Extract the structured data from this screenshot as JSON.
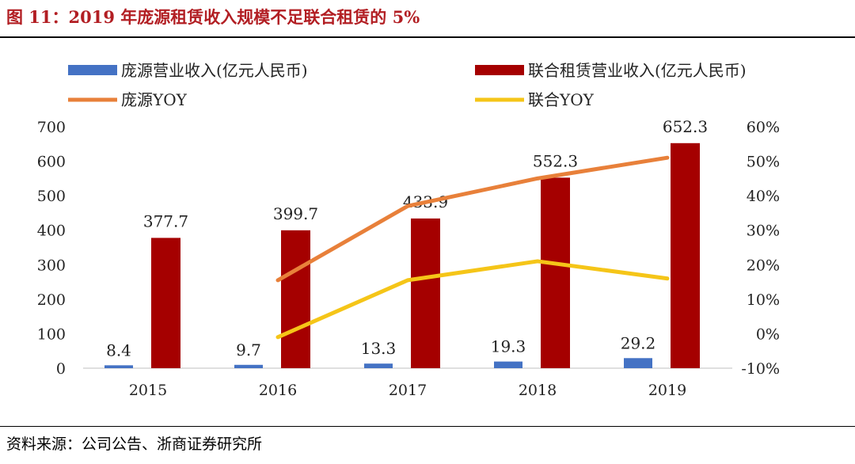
{
  "header": {
    "title": "图 11：2019 年庞源租赁收入规模不足联合租赁的 5%"
  },
  "footer": {
    "source": "资料来源：公司公告、浙商证券研究所"
  },
  "chart_data": {
    "type": "bar+line",
    "categories": [
      "2015",
      "2016",
      "2017",
      "2018",
      "2019"
    ],
    "bar_series": [
      {
        "name": "庞源营业收入(亿元人民币)",
        "color": "#4472c4",
        "values": [
          8.4,
          9.7,
          13.3,
          19.3,
          29.2
        ],
        "labels": [
          "8.4",
          "9.7",
          "13.3",
          "19.3",
          "29.2"
        ]
      },
      {
        "name": "联合租赁营业收入(亿元人民币)",
        "color": "#a50000",
        "values": [
          377.7,
          399.7,
          433.9,
          552.3,
          652.3
        ],
        "labels": [
          "377.7",
          "399.7",
          "433.9",
          "552.3",
          "652.3"
        ]
      }
    ],
    "line_series": [
      {
        "name": "庞源YOY",
        "color": "#e8803a",
        "values": [
          null,
          0.155,
          0.37,
          0.45,
          0.51
        ]
      },
      {
        "name": "联合YOY",
        "color": "#f5c518",
        "values": [
          null,
          -0.01,
          0.155,
          0.21,
          0.16
        ]
      }
    ],
    "y_left": {
      "min": 0,
      "max": 700,
      "ticks": [
        "0",
        "100",
        "200",
        "300",
        "400",
        "500",
        "600",
        "700"
      ]
    },
    "y_right": {
      "min": -0.1,
      "max": 0.6,
      "ticks": [
        "-10%",
        "0%",
        "10%",
        "20%",
        "30%",
        "40%",
        "50%",
        "60%"
      ]
    }
  }
}
